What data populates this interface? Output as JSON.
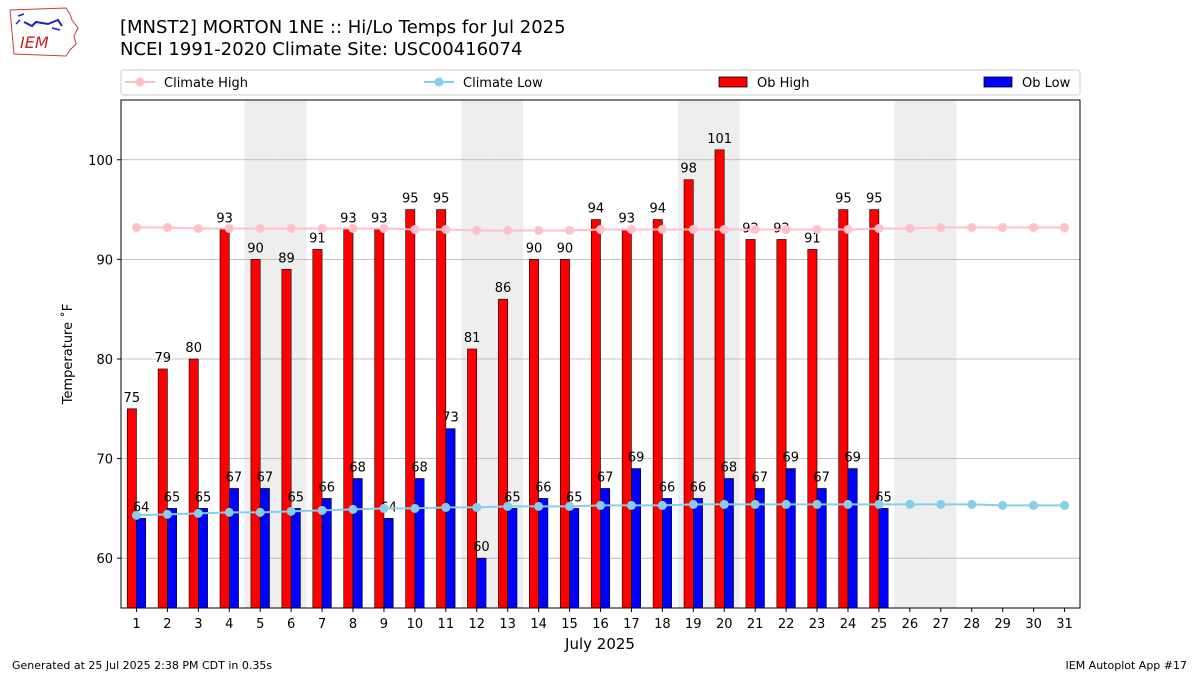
{
  "header": {
    "title_line1": "[MNST2] MORTON 1NE :: Hi/Lo Temps for Jul 2025",
    "title_line2": "NCEI 1991-2020 Climate Site: USC00416074",
    "logo_text": "IEM"
  },
  "footer": {
    "generated": "Generated at 25 Jul 2025 2:38 PM CDT in 0.35s",
    "app": "IEM Autoplot App #17"
  },
  "colors": {
    "ob_high": "#ff0000",
    "ob_low": "#0000ff",
    "climate_high": "#ffc0cb",
    "climate_low": "#87ceeb",
    "weekend_shade": "#eeeeee",
    "grid": "#b0b0b0"
  },
  "chart_data": {
    "type": "bar",
    "xlabel": "July 2025",
    "ylabel": "Temperature ˚F",
    "ylim": [
      55,
      106
    ],
    "yticks": [
      60,
      70,
      80,
      90,
      100
    ],
    "grid": "horizontal",
    "legend_position": "top",
    "categories": [
      1,
      2,
      3,
      4,
      5,
      6,
      7,
      8,
      9,
      10,
      11,
      12,
      13,
      14,
      15,
      16,
      17,
      18,
      19,
      20,
      21,
      22,
      23,
      24,
      25,
      26,
      27,
      28,
      29,
      30,
      31
    ],
    "weekend_days": [
      5,
      6,
      12,
      13,
      19,
      20,
      26,
      27
    ],
    "series": [
      {
        "name": "Climate High",
        "type": "line",
        "values": [
          93.2,
          93.2,
          93.1,
          93.1,
          93.1,
          93.1,
          93.1,
          93.1,
          93.1,
          93.0,
          93.0,
          92.9,
          92.9,
          92.9,
          92.9,
          93.0,
          93.0,
          93.0,
          93.0,
          93.0,
          93.0,
          93.0,
          93.0,
          93.0,
          93.1,
          93.1,
          93.2,
          93.2,
          93.2,
          93.2,
          93.2
        ]
      },
      {
        "name": "Climate Low",
        "type": "line",
        "values": [
          64.3,
          64.4,
          64.5,
          64.6,
          64.6,
          64.7,
          64.8,
          64.9,
          65.0,
          65.0,
          65.1,
          65.1,
          65.2,
          65.2,
          65.2,
          65.3,
          65.3,
          65.3,
          65.4,
          65.4,
          65.4,
          65.4,
          65.4,
          65.4,
          65.4,
          65.4,
          65.4,
          65.4,
          65.3,
          65.3,
          65.3
        ]
      },
      {
        "name": "Ob High",
        "type": "bar",
        "values": [
          75,
          79,
          80,
          93,
          90,
          89,
          91,
          93,
          93,
          95,
          95,
          81,
          86,
          90,
          90,
          94,
          93,
          94,
          98,
          101,
          92,
          92,
          91,
          95,
          95,
          null,
          null,
          null,
          null,
          null,
          null
        ]
      },
      {
        "name": "Ob Low",
        "type": "bar",
        "values": [
          64,
          65,
          65,
          67,
          67,
          65,
          66,
          68,
          64,
          68,
          73,
          60,
          65,
          66,
          65,
          67,
          69,
          66,
          66,
          68,
          67,
          69,
          67,
          69,
          65,
          null,
          null,
          null,
          null,
          null,
          null
        ]
      }
    ]
  }
}
